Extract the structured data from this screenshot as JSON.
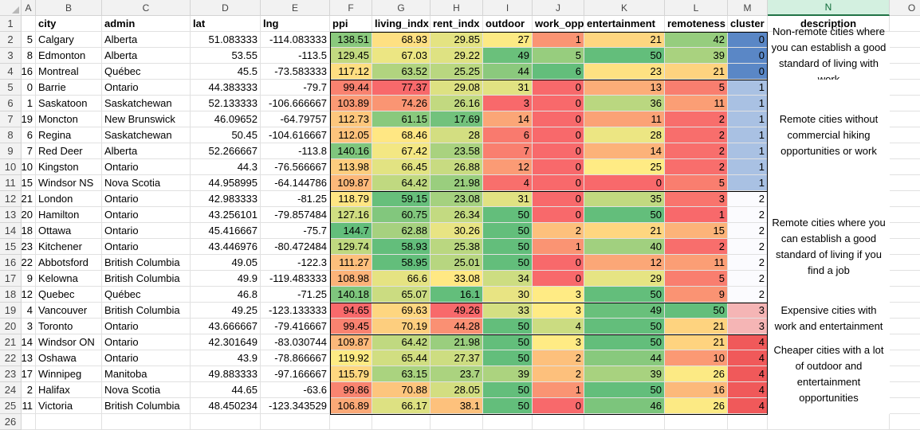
{
  "column_letters": [
    "A",
    "B",
    "C",
    "D",
    "E",
    "F",
    "G",
    "H",
    "I",
    "J",
    "K",
    "L",
    "M",
    "N",
    "O"
  ],
  "selected_column": "N",
  "headers": [
    "",
    "city",
    "admin",
    "lat",
    "lng",
    "ppi",
    "living_indx",
    "rent_indx",
    "outdoor",
    "work_opp",
    "entertainment",
    "remoteness",
    "cluster",
    "description",
    ""
  ],
  "rows": [
    {
      "n": "2",
      "id": "5",
      "city": "Calgary",
      "admin": "Alberta",
      "lat": "51.083333",
      "lng": "-114.083333",
      "ppi": "138.51",
      "living": "68.93",
      "rent": "29.85",
      "outdoor": "27",
      "work": "1",
      "ent": "21",
      "remote": "42",
      "cluster": "0"
    },
    {
      "n": "3",
      "id": "8",
      "city": "Edmonton",
      "admin": "Alberta",
      "lat": "53.55",
      "lng": "-113.5",
      "ppi": "129.45",
      "living": "67.03",
      "rent": "29.22",
      "outdoor": "49",
      "work": "5",
      "ent": "50",
      "remote": "39",
      "cluster": "0"
    },
    {
      "n": "4",
      "id": "16",
      "city": "Montreal",
      "admin": "Québec",
      "lat": "45.5",
      "lng": "-73.583333",
      "ppi": "117.12",
      "living": "63.52",
      "rent": "25.25",
      "outdoor": "44",
      "work": "6",
      "ent": "23",
      "remote": "21",
      "cluster": "0"
    },
    {
      "n": "5",
      "id": "0",
      "city": "Barrie",
      "admin": "Ontario",
      "lat": "44.383333",
      "lng": "-79.7",
      "ppi": "99.44",
      "living": "77.37",
      "rent": "29.08",
      "outdoor": "31",
      "work": "0",
      "ent": "13",
      "remote": "5",
      "cluster": "1"
    },
    {
      "n": "6",
      "id": "1",
      "city": "Saskatoon",
      "admin": "Saskatchewan",
      "lat": "52.133333",
      "lng": "-106.666667",
      "ppi": "103.89",
      "living": "74.26",
      "rent": "26.16",
      "outdoor": "3",
      "work": "0",
      "ent": "36",
      "remote": "11",
      "cluster": "1"
    },
    {
      "n": "7",
      "id": "19",
      "city": "Moncton",
      "admin": "New Brunswick",
      "lat": "46.09652",
      "lng": "-64.79757",
      "ppi": "112.73",
      "living": "61.15",
      "rent": "17.69",
      "outdoor": "14",
      "work": "0",
      "ent": "11",
      "remote": "2",
      "cluster": "1"
    },
    {
      "n": "8",
      "id": "6",
      "city": "Regina",
      "admin": "Saskatchewan",
      "lat": "50.45",
      "lng": "-104.616667",
      "ppi": "112.05",
      "living": "68.46",
      "rent": "28",
      "outdoor": "6",
      "work": "0",
      "ent": "28",
      "remote": "2",
      "cluster": "1"
    },
    {
      "n": "9",
      "id": "7",
      "city": "Red Deer",
      "admin": "Alberta",
      "lat": "52.266667",
      "lng": "-113.8",
      "ppi": "140.16",
      "living": "67.42",
      "rent": "23.58",
      "outdoor": "7",
      "work": "0",
      "ent": "14",
      "remote": "2",
      "cluster": "1"
    },
    {
      "n": "10",
      "id": "10",
      "city": "Kingston",
      "admin": "Ontario",
      "lat": "44.3",
      "lng": "-76.566667",
      "ppi": "113.98",
      "living": "66.45",
      "rent": "26.88",
      "outdoor": "12",
      "work": "0",
      "ent": "25",
      "remote": "2",
      "cluster": "1"
    },
    {
      "n": "11",
      "id": "15",
      "city": "Windsor NS",
      "admin": "Nova Scotia",
      "lat": "44.958995",
      "lng": "-64.144786",
      "ppi": "109.87",
      "living": "64.42",
      "rent": "21.98",
      "outdoor": "4",
      "work": "0",
      "ent": "0",
      "remote": "5",
      "cluster": "1"
    },
    {
      "n": "12",
      "id": "21",
      "city": "London",
      "admin": "Ontario",
      "lat": "42.983333",
      "lng": "-81.25",
      "ppi": "118.79",
      "living": "59.15",
      "rent": "23.08",
      "outdoor": "31",
      "work": "0",
      "ent": "35",
      "remote": "3",
      "cluster": "2"
    },
    {
      "n": "13",
      "id": "20",
      "city": "Hamilton",
      "admin": "Ontario",
      "lat": "43.256101",
      "lng": "-79.857484",
      "ppi": "127.16",
      "living": "60.75",
      "rent": "26.34",
      "outdoor": "50",
      "work": "0",
      "ent": "50",
      "remote": "1",
      "cluster": "2"
    },
    {
      "n": "14",
      "id": "18",
      "city": "Ottawa",
      "admin": "Ontario",
      "lat": "45.416667",
      "lng": "-75.7",
      "ppi": "144.7",
      "living": "62.88",
      "rent": "30.26",
      "outdoor": "50",
      "work": "2",
      "ent": "21",
      "remote": "15",
      "cluster": "2"
    },
    {
      "n": "15",
      "id": "23",
      "city": "Kitchener",
      "admin": "Ontario",
      "lat": "43.446976",
      "lng": "-80.472484",
      "ppi": "129.74",
      "living": "58.93",
      "rent": "25.38",
      "outdoor": "50",
      "work": "1",
      "ent": "40",
      "remote": "2",
      "cluster": "2"
    },
    {
      "n": "16",
      "id": "22",
      "city": "Abbotsford",
      "admin": "British Columbia",
      "lat": "49.05",
      "lng": "-122.3",
      "ppi": "111.27",
      "living": "58.95",
      "rent": "25.01",
      "outdoor": "50",
      "work": "0",
      "ent": "12",
      "remote": "11",
      "cluster": "2"
    },
    {
      "n": "17",
      "id": "9",
      "city": "Kelowna",
      "admin": "British Columbia",
      "lat": "49.9",
      "lng": "-119.483333",
      "ppi": "108.98",
      "living": "66.6",
      "rent": "33.08",
      "outdoor": "34",
      "work": "0",
      "ent": "29",
      "remote": "5",
      "cluster": "2"
    },
    {
      "n": "18",
      "id": "12",
      "city": "Quebec",
      "admin": "Québec",
      "lat": "46.8",
      "lng": "-71.25",
      "ppi": "140.18",
      "living": "65.07",
      "rent": "16.1",
      "outdoor": "30",
      "work": "3",
      "ent": "50",
      "remote": "9",
      "cluster": "2"
    },
    {
      "n": "19",
      "id": "4",
      "city": "Vancouver",
      "admin": "British Columbia",
      "lat": "49.25",
      "lng": "-123.133333",
      "ppi": "94.65",
      "living": "69.63",
      "rent": "49.26",
      "outdoor": "33",
      "work": "3",
      "ent": "49",
      "remote": "50",
      "cluster": "3"
    },
    {
      "n": "20",
      "id": "3",
      "city": "Toronto",
      "admin": "Ontario",
      "lat": "43.666667",
      "lng": "-79.416667",
      "ppi": "99.45",
      "living": "70.19",
      "rent": "44.28",
      "outdoor": "50",
      "work": "4",
      "ent": "50",
      "remote": "21",
      "cluster": "3"
    },
    {
      "n": "21",
      "id": "14",
      "city": "Windsor ON",
      "admin": "Ontario",
      "lat": "42.301649",
      "lng": "-83.030744",
      "ppi": "109.87",
      "living": "64.42",
      "rent": "21.98",
      "outdoor": "50",
      "work": "3",
      "ent": "50",
      "remote": "21",
      "cluster": "4"
    },
    {
      "n": "22",
      "id": "13",
      "city": "Oshawa",
      "admin": "Ontario",
      "lat": "43.9",
      "lng": "-78.866667",
      "ppi": "119.92",
      "living": "65.44",
      "rent": "27.37",
      "outdoor": "50",
      "work": "2",
      "ent": "44",
      "remote": "10",
      "cluster": "4"
    },
    {
      "n": "23",
      "id": "17",
      "city": "Winnipeg",
      "admin": "Manitoba",
      "lat": "49.883333",
      "lng": "-97.166667",
      "ppi": "115.79",
      "living": "63.15",
      "rent": "23.7",
      "outdoor": "39",
      "work": "2",
      "ent": "39",
      "remote": "26",
      "cluster": "4"
    },
    {
      "n": "24",
      "id": "2",
      "city": "Halifax",
      "admin": "Nova Scotia",
      "lat": "44.65",
      "lng": "-63.6",
      "ppi": "99.86",
      "living": "70.88",
      "rent": "28.05",
      "outdoor": "50",
      "work": "1",
      "ent": "50",
      "remote": "16",
      "cluster": "4"
    },
    {
      "n": "25",
      "id": "11",
      "city": "Victoria",
      "admin": "British Columbia",
      "lat": "48.450234",
      "lng": "-123.343529",
      "ppi": "106.89",
      "living": "66.17",
      "rent": "38.1",
      "outdoor": "50",
      "work": "0",
      "ent": "46",
      "remote": "26",
      "cluster": "4"
    }
  ],
  "extra_row": "26",
  "descriptions": [
    {
      "text": "Non-remote cities where you can establish a good standard of living with work",
      "start": 0,
      "span": 3
    },
    {
      "text": "Remote cities without commercial hiking opportunities or work",
      "start": 3,
      "span": 7
    },
    {
      "text": "Remote cities where you can establish a good standard of living if you find a job",
      "start": 10,
      "span": 7
    },
    {
      "text": "Expensive cities with work and entertainment",
      "start": 17,
      "span": 2
    },
    {
      "text": "Cheaper cities with a lot of outdoor and entertainment opportunities",
      "start": 19,
      "span": 5
    }
  ],
  "cluster_colors": {
    "0": "#5a87c6",
    "1": "#a9c1e3",
    "2": "#fbfbfe",
    "3": "#f5b5b5",
    "4": "#f0595a"
  },
  "scale_colors": {
    "low": "#f8696b",
    "mid": "#ffeb84",
    "high": "#63be7b"
  }
}
